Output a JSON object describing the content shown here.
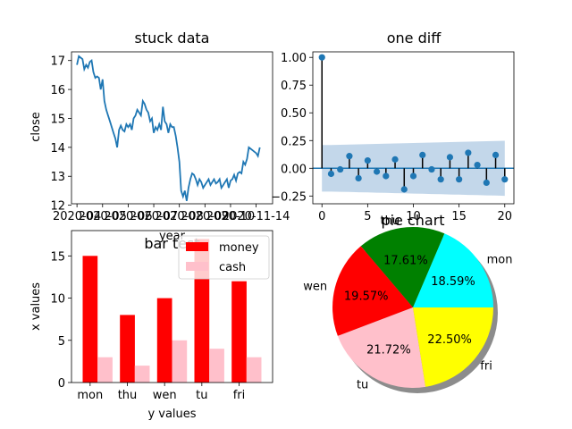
{
  "colors": {
    "line": "#1f77b4",
    "stem": "#000000",
    "marker": "#1f77b4",
    "band": "#b8d0e6",
    "money": "#ff0000",
    "cash": "#ffc0cb",
    "pie": [
      "#00ffff",
      "#008000",
      "#ff0000",
      "#ffc0cb",
      "#ffff00"
    ]
  },
  "chart_data": [
    {
      "type": "line",
      "title": "stuck data",
      "xlabel": "year",
      "ylabel": "close",
      "ylim": [
        12.05,
        17.3
      ],
      "xlim": [
        -3,
        107
      ],
      "yticks": [
        12,
        13,
        14,
        15,
        16,
        17
      ],
      "xtick_positions": [
        0,
        14,
        28,
        42,
        56,
        70,
        84,
        98
      ],
      "xtick_labels": [
        "2020-04",
        "2020-05",
        "2020-06",
        "2020-07",
        "2020-08",
        "2020-09",
        "2020-10",
        "2020-11-14"
      ],
      "x": [
        0,
        1,
        2,
        3,
        4,
        5,
        6,
        7,
        8,
        9,
        10,
        11,
        12,
        13,
        14,
        15,
        16,
        17,
        18,
        19,
        20,
        21,
        22,
        23,
        24,
        25,
        26,
        27,
        28,
        29,
        30,
        31,
        32,
        33,
        34,
        35,
        36,
        37,
        38,
        39,
        40,
        41,
        42,
        43,
        44,
        45,
        46,
        47,
        48,
        49,
        50,
        51,
        52,
        53,
        54,
        55,
        56,
        57,
        58,
        59,
        60,
        61,
        62,
        63,
        64,
        65,
        66,
        67,
        68,
        69,
        70,
        71,
        72,
        73,
        74,
        75,
        76,
        77,
        78,
        79,
        80,
        81,
        82,
        83,
        84,
        85,
        86,
        87,
        88,
        89,
        90,
        91,
        92,
        93,
        94,
        95,
        96,
        97,
        98,
        99,
        100
      ],
      "values": [
        16.85,
        17.15,
        17.1,
        17.05,
        16.7,
        16.85,
        16.75,
        16.95,
        17.0,
        16.6,
        16.4,
        16.45,
        16.4,
        16.0,
        16.35,
        15.6,
        15.3,
        15.1,
        14.9,
        14.7,
        14.5,
        14.3,
        14.0,
        14.6,
        14.75,
        14.6,
        14.55,
        14.8,
        14.7,
        14.8,
        14.6,
        15.0,
        15.1,
        15.3,
        15.2,
        15.1,
        15.6,
        15.5,
        15.3,
        15.2,
        14.9,
        15.0,
        14.5,
        14.7,
        14.6,
        14.8,
        14.6,
        15.4,
        14.9,
        14.8,
        14.5,
        14.8,
        14.7,
        14.7,
        14.4,
        14.0,
        13.5,
        12.5,
        12.3,
        12.5,
        12.15,
        12.6,
        12.9,
        13.1,
        13.05,
        12.9,
        12.7,
        12.9,
        12.8,
        12.6,
        12.7,
        12.8,
        12.9,
        12.7,
        12.8,
        12.9,
        12.75,
        12.8,
        12.9,
        12.6,
        12.7,
        12.8,
        12.9,
        12.6,
        12.85,
        12.9,
        13.05,
        12.85,
        13.1,
        13.15,
        13.1,
        13.5,
        13.4,
        13.6,
        14.0,
        13.95,
        13.9,
        13.85,
        13.8,
        13.7,
        14.0
      ]
    },
    {
      "type": "stem",
      "title": "one diff",
      "xlabel": "",
      "ylabel": "",
      "xlim": [
        -1,
        21
      ],
      "ylim": [
        -0.32,
        1.05
      ],
      "xticks": [
        0,
        5,
        10,
        15,
        20
      ],
      "yticks": [
        -0.25,
        0.0,
        0.25,
        0.5,
        0.75,
        1.0
      ],
      "ytick_labels": [
        "−0.25",
        "0.00",
        "0.25",
        "0.50",
        "0.75",
        "1.00"
      ],
      "x": [
        0,
        1,
        2,
        3,
        4,
        5,
        6,
        7,
        8,
        9,
        10,
        11,
        12,
        13,
        14,
        15,
        16,
        17,
        18,
        19,
        20
      ],
      "values": [
        1.0,
        -0.05,
        -0.01,
        0.11,
        -0.09,
        0.07,
        -0.03,
        -0.07,
        0.08,
        -0.19,
        -0.07,
        0.12,
        -0.01,
        -0.1,
        0.1,
        -0.1,
        0.14,
        0.03,
        -0.13,
        0.12,
        -0.1
      ],
      "band_upper": [
        0.21,
        0.21,
        0.212,
        0.214,
        0.216,
        0.218,
        0.22,
        0.222,
        0.224,
        0.226,
        0.228,
        0.23,
        0.232,
        0.234,
        0.236,
        0.238,
        0.24,
        0.242,
        0.244,
        0.246,
        0.248
      ],
      "band_lower": [
        -0.21,
        -0.21,
        -0.212,
        -0.214,
        -0.216,
        -0.218,
        -0.22,
        -0.222,
        -0.224,
        -0.226,
        -0.228,
        -0.23,
        -0.232,
        -0.234,
        -0.236,
        -0.238,
        -0.24,
        -0.242,
        -0.244,
        -0.246,
        -0.248
      ]
    },
    {
      "type": "bar",
      "title": "bar test",
      "xlabel": "y values",
      "ylabel": "x values",
      "categories": [
        "mon",
        "thu",
        "wen",
        "tu",
        "fri"
      ],
      "series": [
        {
          "name": "money",
          "values": [
            15,
            8,
            10,
            17,
            12
          ]
        },
        {
          "name": "cash",
          "values": [
            3,
            2,
            5,
            4,
            3
          ]
        }
      ],
      "ylim": [
        0,
        18
      ],
      "yticks": [
        0,
        5,
        10,
        15
      ],
      "legend": "top-right"
    },
    {
      "type": "pie",
      "title": "pie chart",
      "labels": [
        "mon",
        "thu",
        "wen",
        "tu",
        "fri"
      ],
      "values": [
        18.59,
        17.61,
        19.57,
        21.72,
        22.5
      ],
      "value_labels": [
        "18.59%",
        "17.61%",
        "19.57%",
        "21.72%",
        "22.50%"
      ],
      "shadow": true
    }
  ]
}
